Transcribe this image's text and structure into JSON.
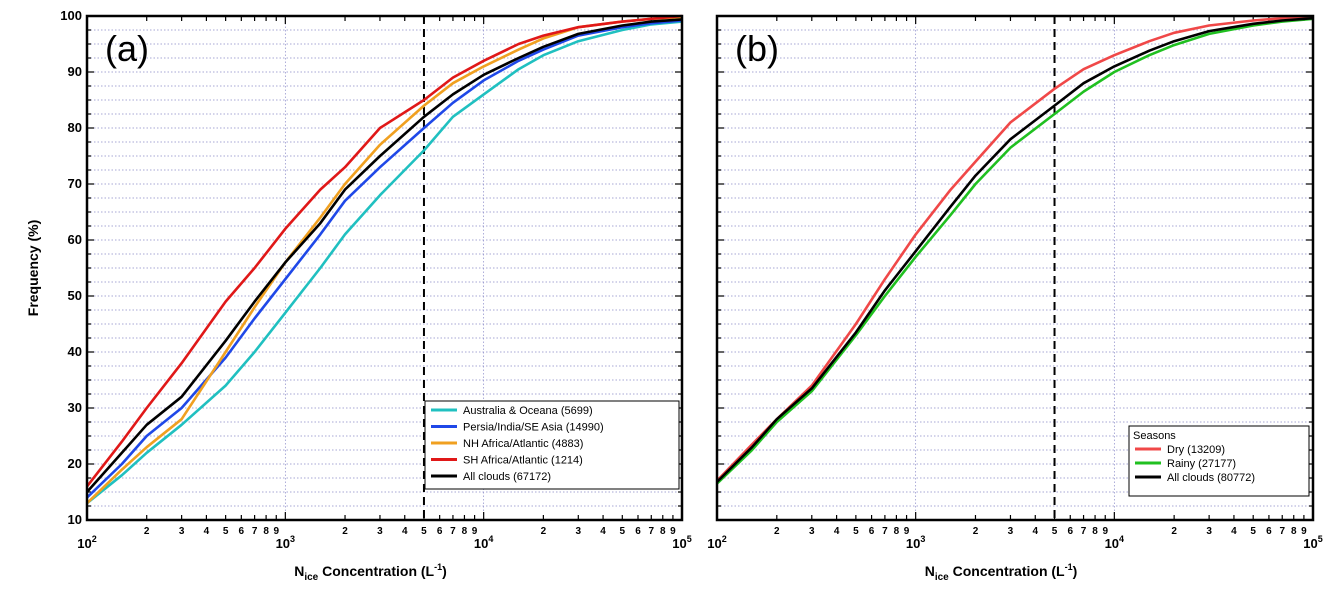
{
  "figure": {
    "ylabel": "Frequency (%)"
  },
  "chart_data": [
    {
      "type": "line",
      "panel_label": "(a)",
      "xlabel": "N_ice Concentration (L^-1)",
      "xlabel_parts": {
        "base": "N",
        "sub": "ice",
        "rest": " Concentration (L",
        "sup": "-1",
        "close": ")"
      },
      "ylabel": "Frequency (%)",
      "xscale": "log",
      "xlim": [
        100,
        100000
      ],
      "ylim": [
        10,
        100
      ],
      "yticks": [
        10,
        20,
        30,
        40,
        50,
        60,
        70,
        80,
        90,
        100
      ],
      "xticks_major": [
        {
          "value": 100,
          "base": "10",
          "exp": "2"
        },
        {
          "value": 1000,
          "base": "10",
          "exp": "3"
        },
        {
          "value": 10000,
          "base": "10",
          "exp": "4"
        },
        {
          "value": 100000,
          "base": "10",
          "exp": "5"
        }
      ],
      "xticks_minor_labels": [
        "2",
        "3",
        "4",
        "5",
        "6",
        "7",
        "8",
        "9"
      ],
      "vline": 5000,
      "grid": true,
      "legend_position": "bottom-right",
      "legend_title": "",
      "series": [
        {
          "name": "Australia & Oceana (5699)",
          "color": "#20c0c0",
          "x": [
            100,
            150,
            200,
            300,
            500,
            700,
            1000,
            1500,
            2000,
            3000,
            5000,
            7000,
            10000,
            15000,
            20000,
            30000,
            50000,
            70000,
            100000
          ],
          "y": [
            13,
            18,
            22,
            27,
            34,
            40,
            47,
            55,
            61,
            68,
            76,
            82,
            86,
            90.5,
            93,
            95.5,
            97.5,
            98.5,
            99
          ]
        },
        {
          "name": "Persia/India/SE Asia (14990)",
          "color": "#1f48e8",
          "x": [
            100,
            150,
            200,
            300,
            500,
            700,
            1000,
            1500,
            2000,
            3000,
            5000,
            7000,
            10000,
            15000,
            20000,
            30000,
            50000,
            70000,
            100000
          ],
          "y": [
            14,
            20,
            25,
            30,
            39,
            46,
            53,
            61,
            67,
            73,
            80,
            84.5,
            88.5,
            92,
            94,
            96.5,
            98,
            98.7,
            99.2
          ]
        },
        {
          "name": "NH Africa/Atlantic (4883)",
          "color": "#f0a020",
          "x": [
            100,
            150,
            200,
            300,
            500,
            700,
            1000,
            1500,
            2000,
            3000,
            5000,
            7000,
            10000,
            15000,
            20000,
            30000,
            50000,
            70000,
            100000
          ],
          "y": [
            13,
            19,
            23,
            28,
            40,
            48,
            56,
            64,
            70,
            77,
            84,
            88,
            91,
            94,
            96,
            98,
            99,
            99.5,
            99.8
          ]
        },
        {
          "name": "SH Africa/Atlantic (1214)",
          "color": "#e01818",
          "x": [
            100,
            150,
            200,
            300,
            500,
            700,
            1000,
            1500,
            2000,
            3000,
            5000,
            7000,
            10000,
            15000,
            20000,
            30000,
            50000,
            70000,
            100000
          ],
          "y": [
            16,
            24,
            30,
            38,
            49,
            55,
            62,
            69,
            73,
            80,
            85,
            89,
            92,
            95,
            96.5,
            98,
            99,
            99.5,
            100
          ]
        },
        {
          "name": "All clouds (67172)",
          "color": "#000000",
          "x": [
            100,
            150,
            200,
            300,
            500,
            700,
            1000,
            1500,
            2000,
            3000,
            5000,
            7000,
            10000,
            15000,
            20000,
            30000,
            50000,
            70000,
            100000
          ],
          "y": [
            15,
            22,
            27,
            32,
            42,
            49,
            56,
            63,
            69,
            75,
            82,
            86,
            89.5,
            92.5,
            94.5,
            96.8,
            98.3,
            99,
            99.4
          ]
        }
      ]
    },
    {
      "type": "line",
      "panel_label": "(b)",
      "xlabel": "N_ice Concentration (L^-1)",
      "xlabel_parts": {
        "base": "N",
        "sub": "ice",
        "rest": " Concentration (L",
        "sup": "-1",
        "close": ")"
      },
      "xscale": "log",
      "xlim": [
        100,
        100000
      ],
      "ylim": [
        10,
        100
      ],
      "xticks_major": [
        {
          "value": 100,
          "base": "10",
          "exp": "2"
        },
        {
          "value": 1000,
          "base": "10",
          "exp": "3"
        },
        {
          "value": 10000,
          "base": "10",
          "exp": "4"
        },
        {
          "value": 100000,
          "base": "10",
          "exp": "5"
        }
      ],
      "xticks_minor_labels": [
        "2",
        "3",
        "4",
        "5",
        "6",
        "7",
        "8",
        "9"
      ],
      "vline": 5000,
      "grid": true,
      "legend_position": "bottom-right",
      "legend_title": "Seasons",
      "series": [
        {
          "name": "Dry (13209)",
          "color": "#f04848",
          "x": [
            100,
            150,
            200,
            300,
            500,
            700,
            1000,
            1500,
            2000,
            3000,
            5000,
            7000,
            10000,
            15000,
            20000,
            30000,
            50000,
            70000,
            100000
          ],
          "y": [
            17,
            23.5,
            28,
            34,
            45,
            53,
            61,
            69,
            74,
            81,
            87,
            90.5,
            93,
            95.5,
            97,
            98.3,
            99.2,
            99.6,
            99.8
          ]
        },
        {
          "name": "Rainy (27177)",
          "color": "#20c020",
          "x": [
            100,
            150,
            200,
            300,
            500,
            700,
            1000,
            1500,
            2000,
            3000,
            5000,
            7000,
            10000,
            15000,
            20000,
            30000,
            50000,
            70000,
            100000
          ],
          "y": [
            16.5,
            22.5,
            27.5,
            33,
            43,
            50,
            57,
            64.5,
            70,
            76.5,
            82.5,
            86.5,
            90,
            93,
            94.8,
            96.8,
            98.3,
            99,
            99.5
          ]
        },
        {
          "name": "All clouds (80772)",
          "color": "#000000",
          "x": [
            100,
            150,
            200,
            300,
            500,
            700,
            1000,
            1500,
            2000,
            3000,
            5000,
            7000,
            10000,
            15000,
            20000,
            30000,
            50000,
            70000,
            100000
          ],
          "y": [
            16.8,
            23,
            28,
            33.5,
            43.5,
            51,
            58,
            66,
            71.5,
            78,
            84,
            88,
            91,
            93.8,
            95.5,
            97.3,
            98.6,
            99.2,
            99.6
          ]
        }
      ]
    }
  ]
}
